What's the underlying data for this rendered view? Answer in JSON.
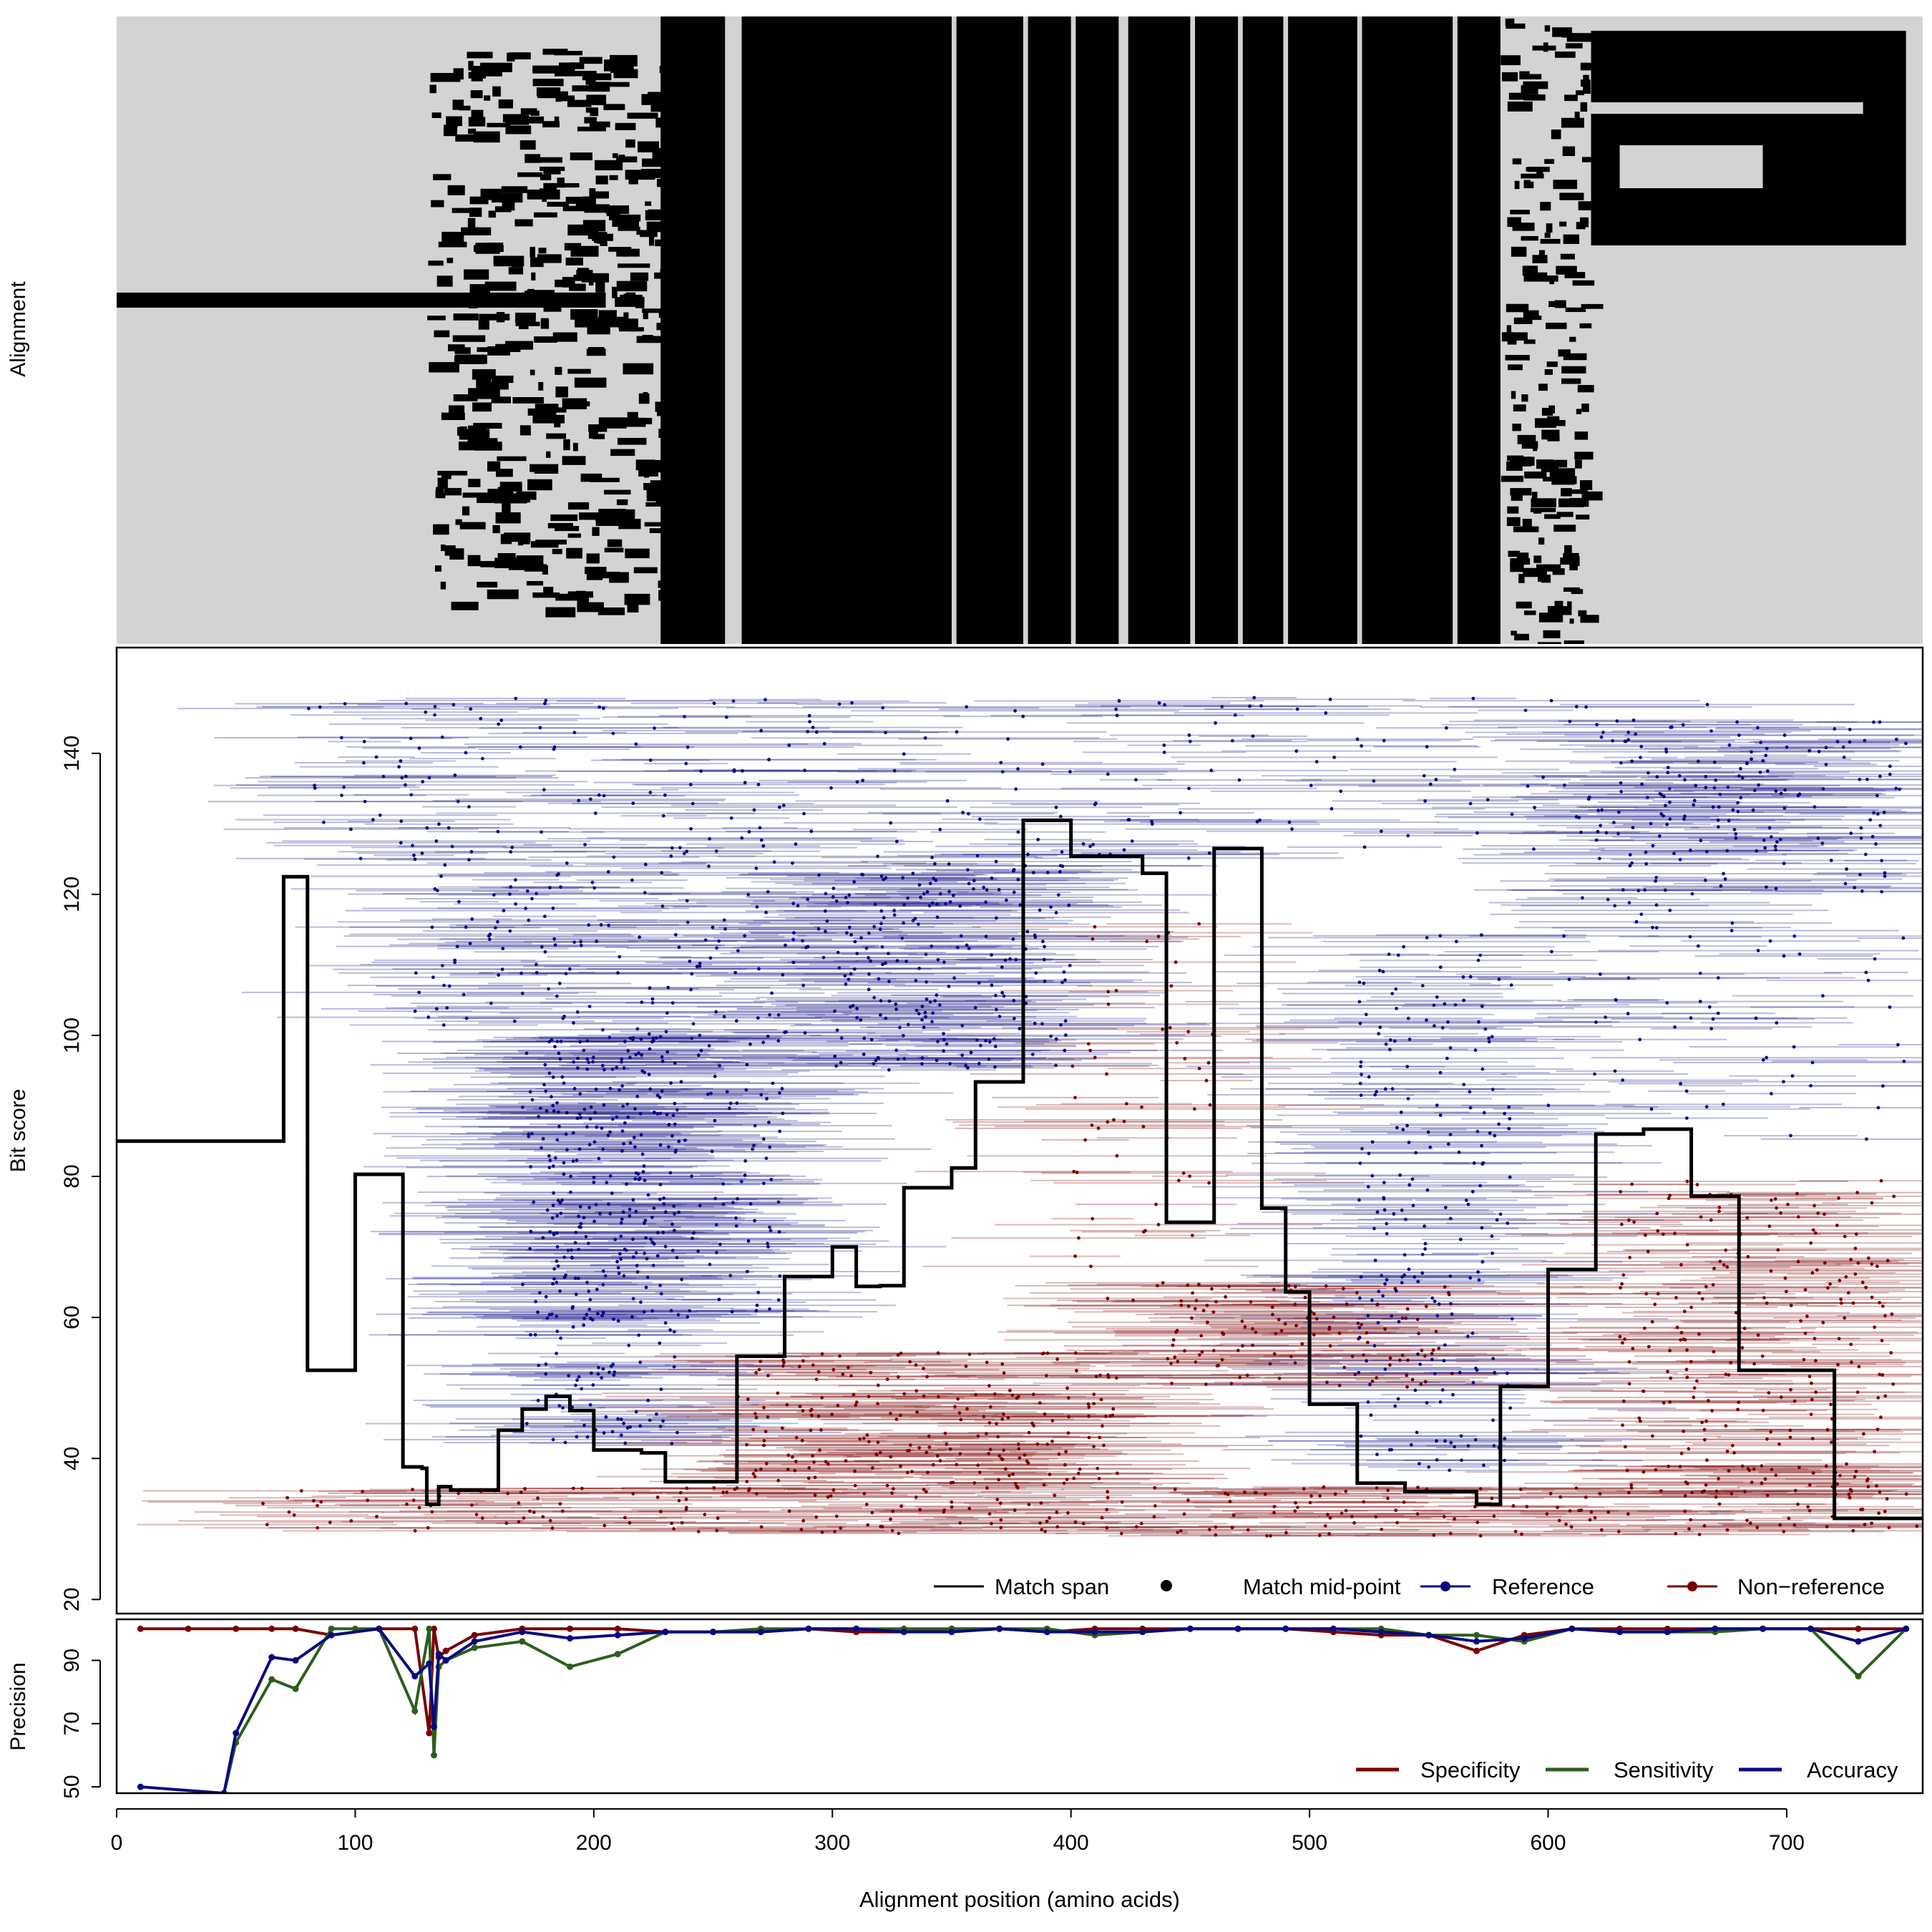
{
  "colors": {
    "reference": "#0a0a80",
    "non_reference": "#7a0000",
    "specificity": "#7a0000",
    "sensitivity": "#2e5e1e",
    "accuracy": "#0a0a80",
    "alignment_gap": "#d3d3d3",
    "alignment_residue": "#000000"
  },
  "chart_data": [
    {
      "type": "heatmap",
      "ylabel": "Alignment",
      "description_levels": [
        "gap",
        "residue"
      ],
      "xlim": [
        0,
        757
      ],
      "dense_column_blocks": [
        [
          228,
          255
        ],
        [
          262,
          350
        ],
        [
          352,
          380
        ],
        [
          382,
          400
        ],
        [
          402,
          420
        ],
        [
          424,
          450
        ],
        [
          452,
          470
        ],
        [
          472,
          489
        ],
        [
          491,
          520
        ],
        [
          522,
          560
        ],
        [
          562,
          580
        ]
      ],
      "upper_right_block": [
        [
          618,
          750
        ]
      ],
      "left_band_row_fraction": [
        0.44,
        0.5
      ]
    },
    {
      "type": "line",
      "ylabel": "Bit score",
      "ylim": [
        18,
        155
      ],
      "y_ticks": [
        "20",
        "40",
        "60",
        "80",
        "100",
        "120",
        "140"
      ],
      "legend": {
        "placement": "bottom-right",
        "entries": [
          "Match span",
          "Match mid-point",
          "Reference",
          "Non−reference"
        ]
      },
      "series": [
        {
          "name": "Match span",
          "step_x": [
            0,
            70,
            80,
            100,
            120,
            128,
            130,
            135,
            140,
            160,
            170,
            180,
            190,
            200,
            220,
            230,
            240,
            260,
            280,
            300,
            310,
            320,
            330,
            340,
            350,
            360,
            380,
            400,
            420,
            430,
            440,
            460,
            480,
            490,
            500,
            520,
            540,
            560,
            570,
            580,
            600,
            620,
            640,
            660,
            680,
            700,
            720,
            730,
            740,
            757
          ],
          "step_y": [
            85,
            122.5,
            52.5,
            80.3,
            38.8,
            38.6,
            33.5,
            36,
            35.5,
            44,
            47,
            48.8,
            46.8,
            41.2,
            40.8,
            36.7,
            36.7,
            54.5,
            65.8,
            70,
            64.4,
            64.5,
            78.4,
            78.4,
            81.2,
            93.4,
            130.5,
            125.4,
            125.4,
            123,
            73.5,
            126.5,
            75.5,
            63.6,
            47.7,
            36.5,
            35.3,
            35.3,
            33.5,
            50.2,
            66.8,
            86,
            86.7,
            77.2,
            52.5,
            52.5,
            31.5,
            31.5,
            31.5
          ]
        }
      ],
      "clouds": {
        "reference": [
          {
            "x": [
              80,
              700
            ],
            "y": [
              125,
              148
            ],
            "density": 1.0
          },
          {
            "x": [
              120,
              300
            ],
            "y": [
              100,
              128
            ],
            "density": 0.6
          },
          {
            "x": [
              300,
              400
            ],
            "y": [
              95,
              125
            ],
            "density": 0.8
          },
          {
            "x": [
              170,
              235
            ],
            "y": [
              42,
              100
            ],
            "density": 0.9
          },
          {
            "x": [
              180,
              280
            ],
            "y": [
              60,
              100
            ],
            "density": 0.7
          },
          {
            "x": [
              520,
              585
            ],
            "y": [
              38,
              115
            ],
            "density": 0.8
          },
          {
            "x": [
              620,
              750
            ],
            "y": [
              120,
              145
            ],
            "density": 0.5
          },
          {
            "x": [
              600,
              750
            ],
            "y": [
              85,
              120
            ],
            "density": 0.2
          }
        ],
        "non_reference": [
          {
            "x": [
              60,
              757
            ],
            "y": [
              29,
              36
            ],
            "density": 1.0
          },
          {
            "x": [
              260,
              420
            ],
            "y": [
              36,
              55
            ],
            "density": 0.8
          },
          {
            "x": [
              630,
              745
            ],
            "y": [
              35,
              80
            ],
            "density": 0.9
          },
          {
            "x": [
              440,
              560
            ],
            "y": [
              50,
              65
            ],
            "density": 0.4
          },
          {
            "x": [
              400,
              460
            ],
            "y": [
              60,
              120
            ],
            "density": 0.15
          }
        ]
      }
    },
    {
      "type": "line",
      "ylabel": "Precision",
      "xlabel": "Alignment position (amino acids)",
      "xlim": [
        0,
        757
      ],
      "ylim": [
        48,
        103
      ],
      "x_ticks": [
        "0",
        "100",
        "200",
        "300",
        "400",
        "500",
        "600",
        "700"
      ],
      "y_ticks": [
        "50",
        "70",
        "90"
      ],
      "legend": {
        "placement": "bottom-right",
        "entries": [
          "Specificity",
          "Sensitivity",
          "Accuracy"
        ]
      },
      "series": [
        {
          "name": "Specificity",
          "x": [
            10,
            30,
            50,
            65,
            75,
            90,
            110,
            125,
            131,
            133,
            135,
            138,
            150,
            170,
            190,
            210,
            230,
            250,
            270,
            290,
            310,
            330,
            350,
            370,
            390,
            410,
            430,
            450,
            470,
            490,
            510,
            530,
            550,
            570,
            590,
            610,
            630,
            650,
            670,
            690,
            710,
            730,
            750
          ],
          "y": [
            100,
            100,
            100,
            100,
            100,
            98,
            100,
            100,
            67,
            100,
            91,
            93,
            98,
            100,
            100,
            100,
            99,
            99,
            99,
            100,
            99,
            99,
            100,
            100,
            99,
            100,
            100,
            100,
            100,
            100,
            99,
            98,
            98,
            93,
            98,
            100,
            100,
            100,
            100,
            100,
            100,
            100,
            100
          ]
        },
        {
          "name": "Sensitivity",
          "x": [
            45,
            50,
            65,
            75,
            90,
            100,
            110,
            125,
            131,
            133,
            135,
            138,
            150,
            170,
            190,
            210,
            230,
            250,
            270,
            290,
            310,
            330,
            350,
            370,
            390,
            410,
            430,
            450,
            470,
            490,
            510,
            530,
            550,
            570,
            590,
            610,
            630,
            650,
            670,
            690,
            710,
            730,
            750
          ],
          "y": [
            48,
            64,
            84,
            81,
            100,
            100,
            100,
            74,
            100,
            60,
            88,
            90,
            94,
            96,
            88,
            92,
            99,
            99,
            100,
            100,
            100,
            100,
            100,
            100,
            100,
            98,
            99,
            100,
            100,
            100,
            100,
            100,
            98,
            98,
            96,
            100,
            99,
            99,
            99,
            100,
            100,
            85,
            100
          ]
        },
        {
          "name": "Accuracy",
          "x": [
            10,
            45,
            50,
            65,
            75,
            90,
            110,
            125,
            131,
            133,
            135,
            138,
            150,
            170,
            190,
            210,
            230,
            250,
            270,
            290,
            310,
            330,
            350,
            370,
            390,
            410,
            430,
            450,
            470,
            490,
            510,
            530,
            550,
            570,
            590,
            610,
            630,
            650,
            670,
            690,
            710,
            730,
            750
          ],
          "y": [
            50,
            48,
            67,
            91,
            90,
            98,
            100,
            85,
            89,
            69,
            92,
            90,
            96,
            99,
            97,
            98,
            99,
            99,
            99,
            100,
            100,
            99,
            99,
            100,
            99,
            99,
            99,
            100,
            100,
            100,
            100,
            99,
            98,
            96,
            97,
            100,
            99,
            99,
            100,
            100,
            100,
            96,
            100
          ]
        }
      ]
    }
  ]
}
